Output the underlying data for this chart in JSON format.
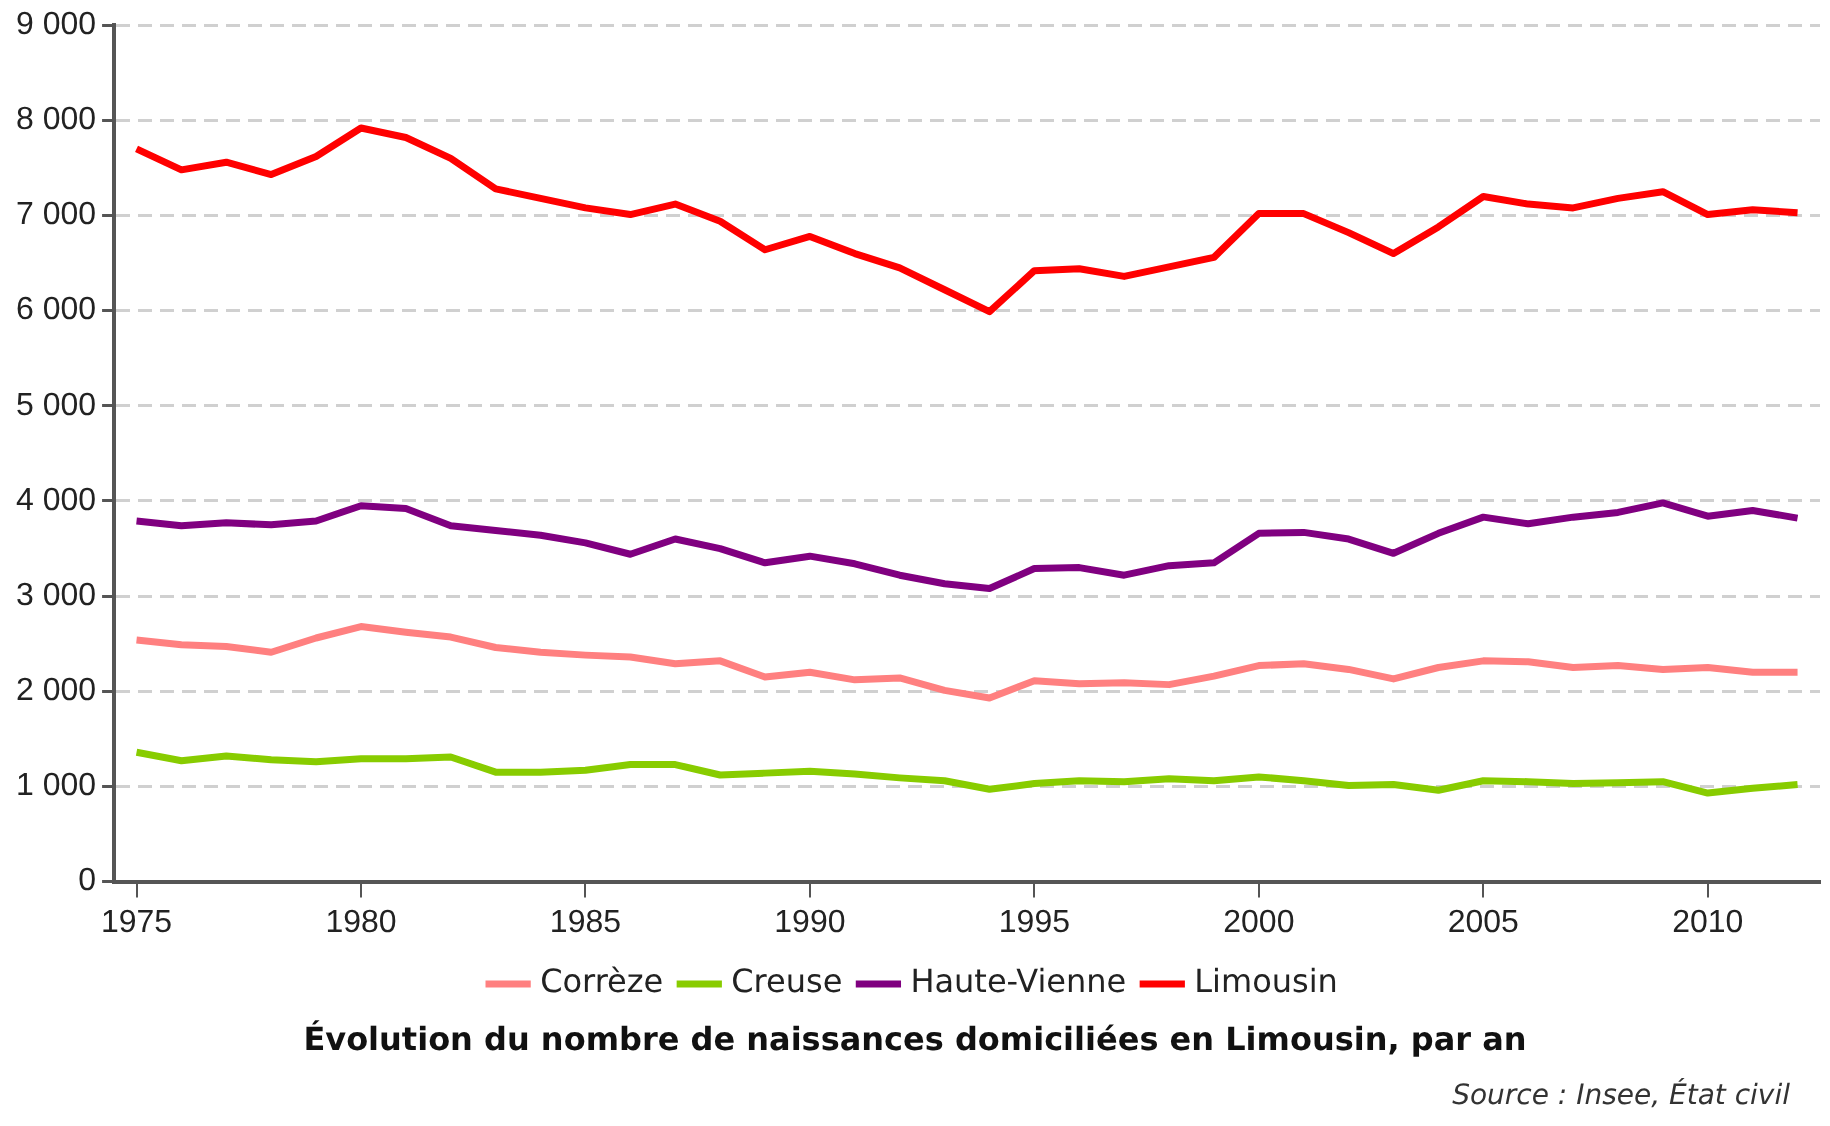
{
  "chart_data": {
    "type": "line",
    "title": "Évolution du nombre de naissances domiciliées en Limousin, par an",
    "annotations": [
      "Source : Insee, État civil"
    ],
    "x": [
      1975,
      1976,
      1977,
      1978,
      1979,
      1980,
      1981,
      1982,
      1983,
      1984,
      1985,
      1986,
      1987,
      1988,
      1989,
      1990,
      1991,
      1992,
      1993,
      1994,
      1995,
      1996,
      1997,
      1998,
      1999,
      2000,
      2001,
      2002,
      2003,
      2004,
      2005,
      2006,
      2007,
      2008,
      2009,
      2010,
      2011,
      2012
    ],
    "xlim": [
      1974.5,
      2012.5
    ],
    "xticks": [
      1975,
      1980,
      1985,
      1990,
      1995,
      2000,
      2005,
      2010
    ],
    "ylim": [
      0,
      9000
    ],
    "yticks": [
      {
        "value": 0,
        "label": "0"
      },
      {
        "value": 1000,
        "label": "1 000"
      },
      {
        "value": 2000,
        "label": "2 000"
      },
      {
        "value": 3000,
        "label": "3 000"
      },
      {
        "value": 4000,
        "label": "4 000"
      },
      {
        "value": 5000,
        "label": "5 000"
      },
      {
        "value": 6000,
        "label": "6 000"
      },
      {
        "value": 7000,
        "label": "7 000"
      },
      {
        "value": 8000,
        "label": "8 000"
      },
      {
        "value": 9000,
        "label": "9 000"
      }
    ],
    "grid": "y",
    "legend": "bottom",
    "marker": "none",
    "line_style": "solid",
    "series": [
      {
        "name": "Corrèze",
        "color": "#ff8080",
        "values": [
          2540,
          2490,
          2470,
          2410,
          2560,
          2680,
          2620,
          2570,
          2460,
          2410,
          2380,
          2360,
          2290,
          2320,
          2150,
          2200,
          2120,
          2140,
          2010,
          1930,
          2110,
          2080,
          2090,
          2070,
          2160,
          2270,
          2290,
          2230,
          2130,
          2250,
          2320,
          2310,
          2250,
          2270,
          2230,
          2250,
          2200,
          2200
        ]
      },
      {
        "name": "Creuse",
        "color": "#88cc00",
        "values": [
          1360,
          1270,
          1320,
          1280,
          1260,
          1290,
          1290,
          1310,
          1150,
          1150,
          1170,
          1230,
          1230,
          1120,
          1140,
          1160,
          1130,
          1090,
          1060,
          970,
          1030,
          1060,
          1050,
          1080,
          1060,
          1100,
          1060,
          1010,
          1020,
          960,
          1060,
          1050,
          1030,
          1040,
          1050,
          930,
          980,
          1020
        ]
      },
      {
        "name": "Haute-Vienne",
        "color": "#800080",
        "values": [
          3790,
          3740,
          3770,
          3750,
          3790,
          3950,
          3920,
          3740,
          3690,
          3640,
          3560,
          3440,
          3600,
          3500,
          3350,
          3420,
          3340,
          3220,
          3130,
          3080,
          3290,
          3300,
          3220,
          3320,
          3350,
          3660,
          3670,
          3600,
          3450,
          3660,
          3830,
          3760,
          3830,
          3880,
          3980,
          3840,
          3900,
          3820
        ]
      },
      {
        "name": "Limousin",
        "color": "#ff0000",
        "values": [
          7700,
          7480,
          7560,
          7430,
          7620,
          7920,
          7820,
          7600,
          7280,
          7180,
          7080,
          7010,
          7120,
          6940,
          6640,
          6780,
          6600,
          6450,
          6220,
          5990,
          6420,
          6440,
          6360,
          6460,
          6560,
          7020,
          7020,
          6820,
          6600,
          6880,
          7200,
          7120,
          7080,
          7180,
          7250,
          7010,
          7060,
          7030
        ]
      }
    ]
  }
}
